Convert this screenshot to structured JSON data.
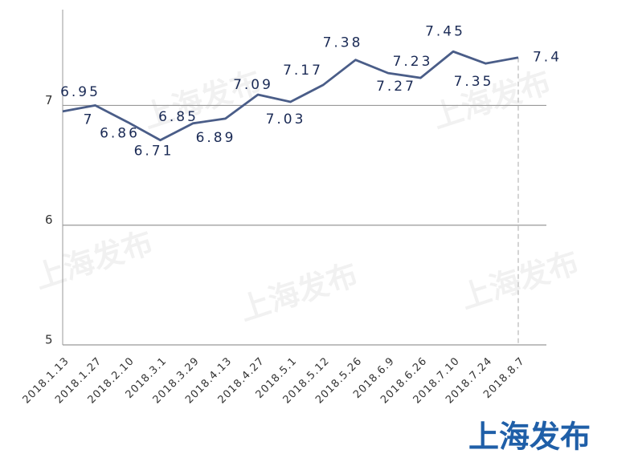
{
  "chart_data": {
    "type": "line",
    "categories": [
      "2018.1.13",
      "2018.1.27",
      "2018.2.10",
      "2018.3.1",
      "2018.3.29",
      "2018.4.13",
      "2018.4.27",
      "2018.5.1",
      "2018.5.12",
      "2018.5.26",
      "2018.6.9",
      "2018.6.26",
      "2018.7.10",
      "2018.7.24",
      "2018.8.7"
    ],
    "values": [
      6.95,
      7,
      6.86,
      6.71,
      6.85,
      6.89,
      7.09,
      7.03,
      7.17,
      7.38,
      7.27,
      7.23,
      7.45,
      7.35,
      7.4
    ],
    "color": "#4a5d88",
    "ylim": [
      5,
      7.8
    ],
    "yticks": [
      5,
      6,
      7
    ],
    "grid": true,
    "watermark": "上海发布",
    "brand": "上海发布"
  }
}
